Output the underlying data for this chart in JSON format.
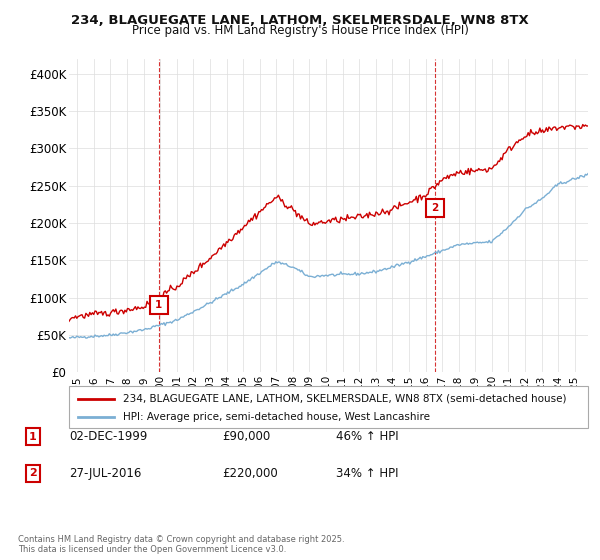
{
  "title1": "234, BLAGUEGATE LANE, LATHOM, SKELMERSDALE, WN8 8TX",
  "title2": "Price paid vs. HM Land Registry's House Price Index (HPI)",
  "ylabel_ticks": [
    "£0",
    "£50K",
    "£100K",
    "£150K",
    "£200K",
    "£250K",
    "£300K",
    "£350K",
    "£400K"
  ],
  "ytick_vals": [
    0,
    50000,
    100000,
    150000,
    200000,
    250000,
    300000,
    350000,
    400000
  ],
  "ylim": [
    0,
    420000
  ],
  "xlim_start": 1994.5,
  "xlim_end": 2025.8,
  "xtick_years": [
    1995,
    1996,
    1997,
    1998,
    1999,
    2000,
    2001,
    2002,
    2003,
    2004,
    2005,
    2006,
    2007,
    2008,
    2009,
    2010,
    2011,
    2012,
    2013,
    2014,
    2015,
    2016,
    2017,
    2018,
    2019,
    2020,
    2021,
    2022,
    2023,
    2024,
    2025
  ],
  "sale1_x": 1999.92,
  "sale1_y": 90000,
  "sale1_label": "1",
  "sale2_x": 2016.57,
  "sale2_y": 220000,
  "sale2_label": "2",
  "sale_color": "#cc0000",
  "hpi_color": "#7bafd4",
  "vline_color": "#cc0000",
  "legend_label_red": "234, BLAGUEGATE LANE, LATHOM, SKELMERSDALE, WN8 8TX (semi-detached house)",
  "legend_label_blue": "HPI: Average price, semi-detached house, West Lancashire",
  "note1_label": "1",
  "note1_date": "02-DEC-1999",
  "note1_price": "£90,000",
  "note1_hpi": "46% ↑ HPI",
  "note2_label": "2",
  "note2_date": "27-JUL-2016",
  "note2_price": "£220,000",
  "note2_hpi": "34% ↑ HPI",
  "footer": "Contains HM Land Registry data © Crown copyright and database right 2025.\nThis data is licensed under the Open Government Licence v3.0.",
  "bg_color": "#ffffff",
  "grid_color": "#dddddd"
}
